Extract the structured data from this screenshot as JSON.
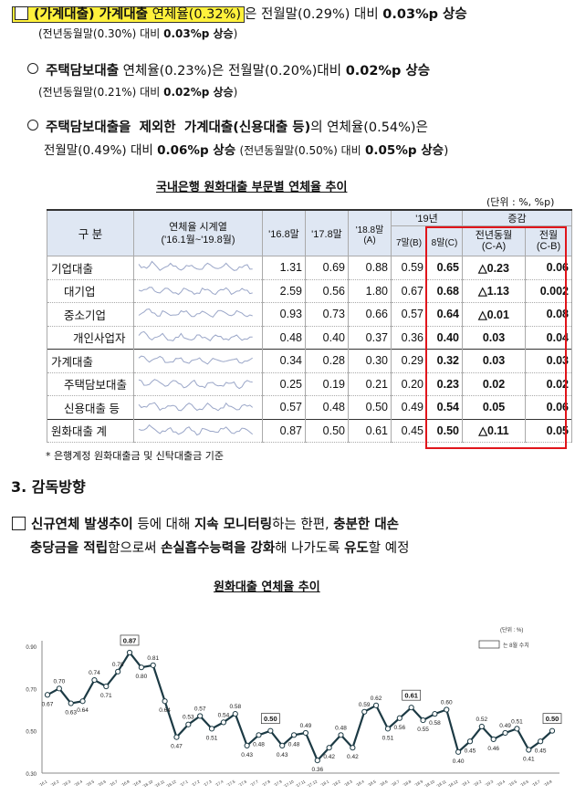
{
  "line1": {
    "label": "(가계대출) 가계대출",
    "rate": "연체율(0.32%)",
    "rest": "은 전월말(0.29%) 대비",
    "change": "0.03%p 상승"
  },
  "line1b": {
    "text": "(전년동월말(0.30%) 대비",
    "change": "0.03%p 상승",
    "close": ")"
  },
  "line2": {
    "label": "주택담보대출",
    "text": "연체율(0.23%)은 전월말(0.20%)대비",
    "change": "0.02%p 상승"
  },
  "line2b": {
    "text": "(전년동월말(0.21%) 대비",
    "change": "0.02%p 상승",
    "close": ")"
  },
  "line3": {
    "a": "주택담보대출을",
    "b": "제외한",
    "c": "가계대출(신용대출 등)",
    "d": "의 연체율(0.54%)은"
  },
  "line3b": {
    "a": "전월말(0.49%) 대비",
    "b": "0.06%p 상승",
    "c": "(전년동월말(0.50%) 대비",
    "d": "0.05%p 상승",
    "e": ")"
  },
  "table_title": "국내은행 원화대출 부문별 연체율 추이",
  "unit": "(단위 : %, %p)",
  "headers": {
    "category": "구  분",
    "series": "연체율 시계열",
    "series_sub": "('16.1월~'19.8월)",
    "y16": "'16.8말",
    "y17": "'17.8말",
    "y18": "'18.8말(A)",
    "y19": "'19년",
    "m7": "7말(B)",
    "m8": "8말(C)",
    "change": "증감",
    "yoy": "전년동월",
    "yoy_sub": "(C-A)",
    "mom": "전월",
    "mom_sub": "(C-B)"
  },
  "rows": [
    {
      "name": "기업대출",
      "v": [
        "1.31",
        "0.69",
        "0.88",
        "0.59",
        "0.65",
        "△0.23",
        "0.06"
      ]
    },
    {
      "name": "대기업",
      "v": [
        "2.59",
        "0.56",
        "1.80",
        "0.67",
        "0.68",
        "△1.13",
        "0.002"
      ]
    },
    {
      "name": "중소기업",
      "v": [
        "0.93",
        "0.73",
        "0.66",
        "0.57",
        "0.64",
        "△0.01",
        "0.08"
      ]
    },
    {
      "name": "개인사업자",
      "v": [
        "0.48",
        "0.40",
        "0.37",
        "0.36",
        "0.40",
        "0.03",
        "0.04"
      ]
    },
    {
      "name": "가계대출",
      "v": [
        "0.34",
        "0.28",
        "0.30",
        "0.29",
        "0.32",
        "0.03",
        "0.03"
      ]
    },
    {
      "name": "주택담보대출",
      "v": [
        "0.25",
        "0.19",
        "0.21",
        "0.20",
        "0.23",
        "0.02",
        "0.02"
      ]
    },
    {
      "name": "신용대출 등",
      "v": [
        "0.57",
        "0.48",
        "0.50",
        "0.49",
        "0.54",
        "0.05",
        "0.06"
      ]
    },
    {
      "name": "원화대출 계",
      "v": [
        "0.87",
        "0.50",
        "0.61",
        "0.45",
        "0.50",
        "△0.11",
        "0.05"
      ]
    }
  ],
  "footnote": "* 은행계정 원화대출금 및 신탁대출금 기준",
  "section3": "3. 감독방향",
  "para": {
    "a": "신규연체 발생추이",
    "b": " 등에 대해 ",
    "c": "지속 모니터링",
    "d": "하는 한편, ",
    "e": "충분한 대손",
    "f": "충당금을 적립",
    "g": "함으로써 ",
    "h": "손실흡수능력을 강화",
    "i": "해 나가도록 ",
    "j": "유도",
    "k": "할 예정"
  },
  "chart_title": "원화대출 연체율 추이",
  "chart_data": {
    "type": "line",
    "unit_label": "(단위 : %)",
    "legend": "는 8월 수치",
    "ylim": [
      0.3,
      0.9
    ],
    "yticks": [
      "0.30",
      "0.50",
      "0.70",
      "0.90"
    ],
    "x": [
      "'16.1",
      "'16.2",
      "'16.3",
      "'16.4",
      "'16.5",
      "'16.6",
      "'16.7",
      "'16.8",
      "'16.9",
      "'16.10",
      "'16.11",
      "'16.12",
      "'17.1",
      "'17.2",
      "'17.3",
      "'17.4",
      "'17.5",
      "'17.6",
      "'17.7",
      "'17.8",
      "'17.9",
      "'17.10",
      "'17.11",
      "'17.12",
      "'18.1",
      "'18.2",
      "'18.3",
      "'18.4",
      "'18.5",
      "'18.6",
      "'18.7",
      "'18.8",
      "'18.9",
      "'18.10",
      "'18.11",
      "'18.12",
      "'19.1",
      "'19.2",
      "'19.3",
      "'19.4",
      "'19.5",
      "'19.6",
      "'19.7",
      "'19.8"
    ],
    "values": [
      0.67,
      0.7,
      0.63,
      0.64,
      0.74,
      0.71,
      0.78,
      0.87,
      0.8,
      0.81,
      0.64,
      0.47,
      0.53,
      0.57,
      0.51,
      0.54,
      0.58,
      0.43,
      0.48,
      0.5,
      0.43,
      0.48,
      0.49,
      0.36,
      0.42,
      0.48,
      0.42,
      0.59,
      0.62,
      0.51,
      0.56,
      0.61,
      0.55,
      0.58,
      0.6,
      0.4,
      0.45,
      0.52,
      0.46,
      0.49,
      0.51,
      0.41,
      0.45,
      0.5
    ],
    "highlight_labels": [
      "0.87",
      "0.50",
      "0.61",
      "0.50"
    ]
  }
}
